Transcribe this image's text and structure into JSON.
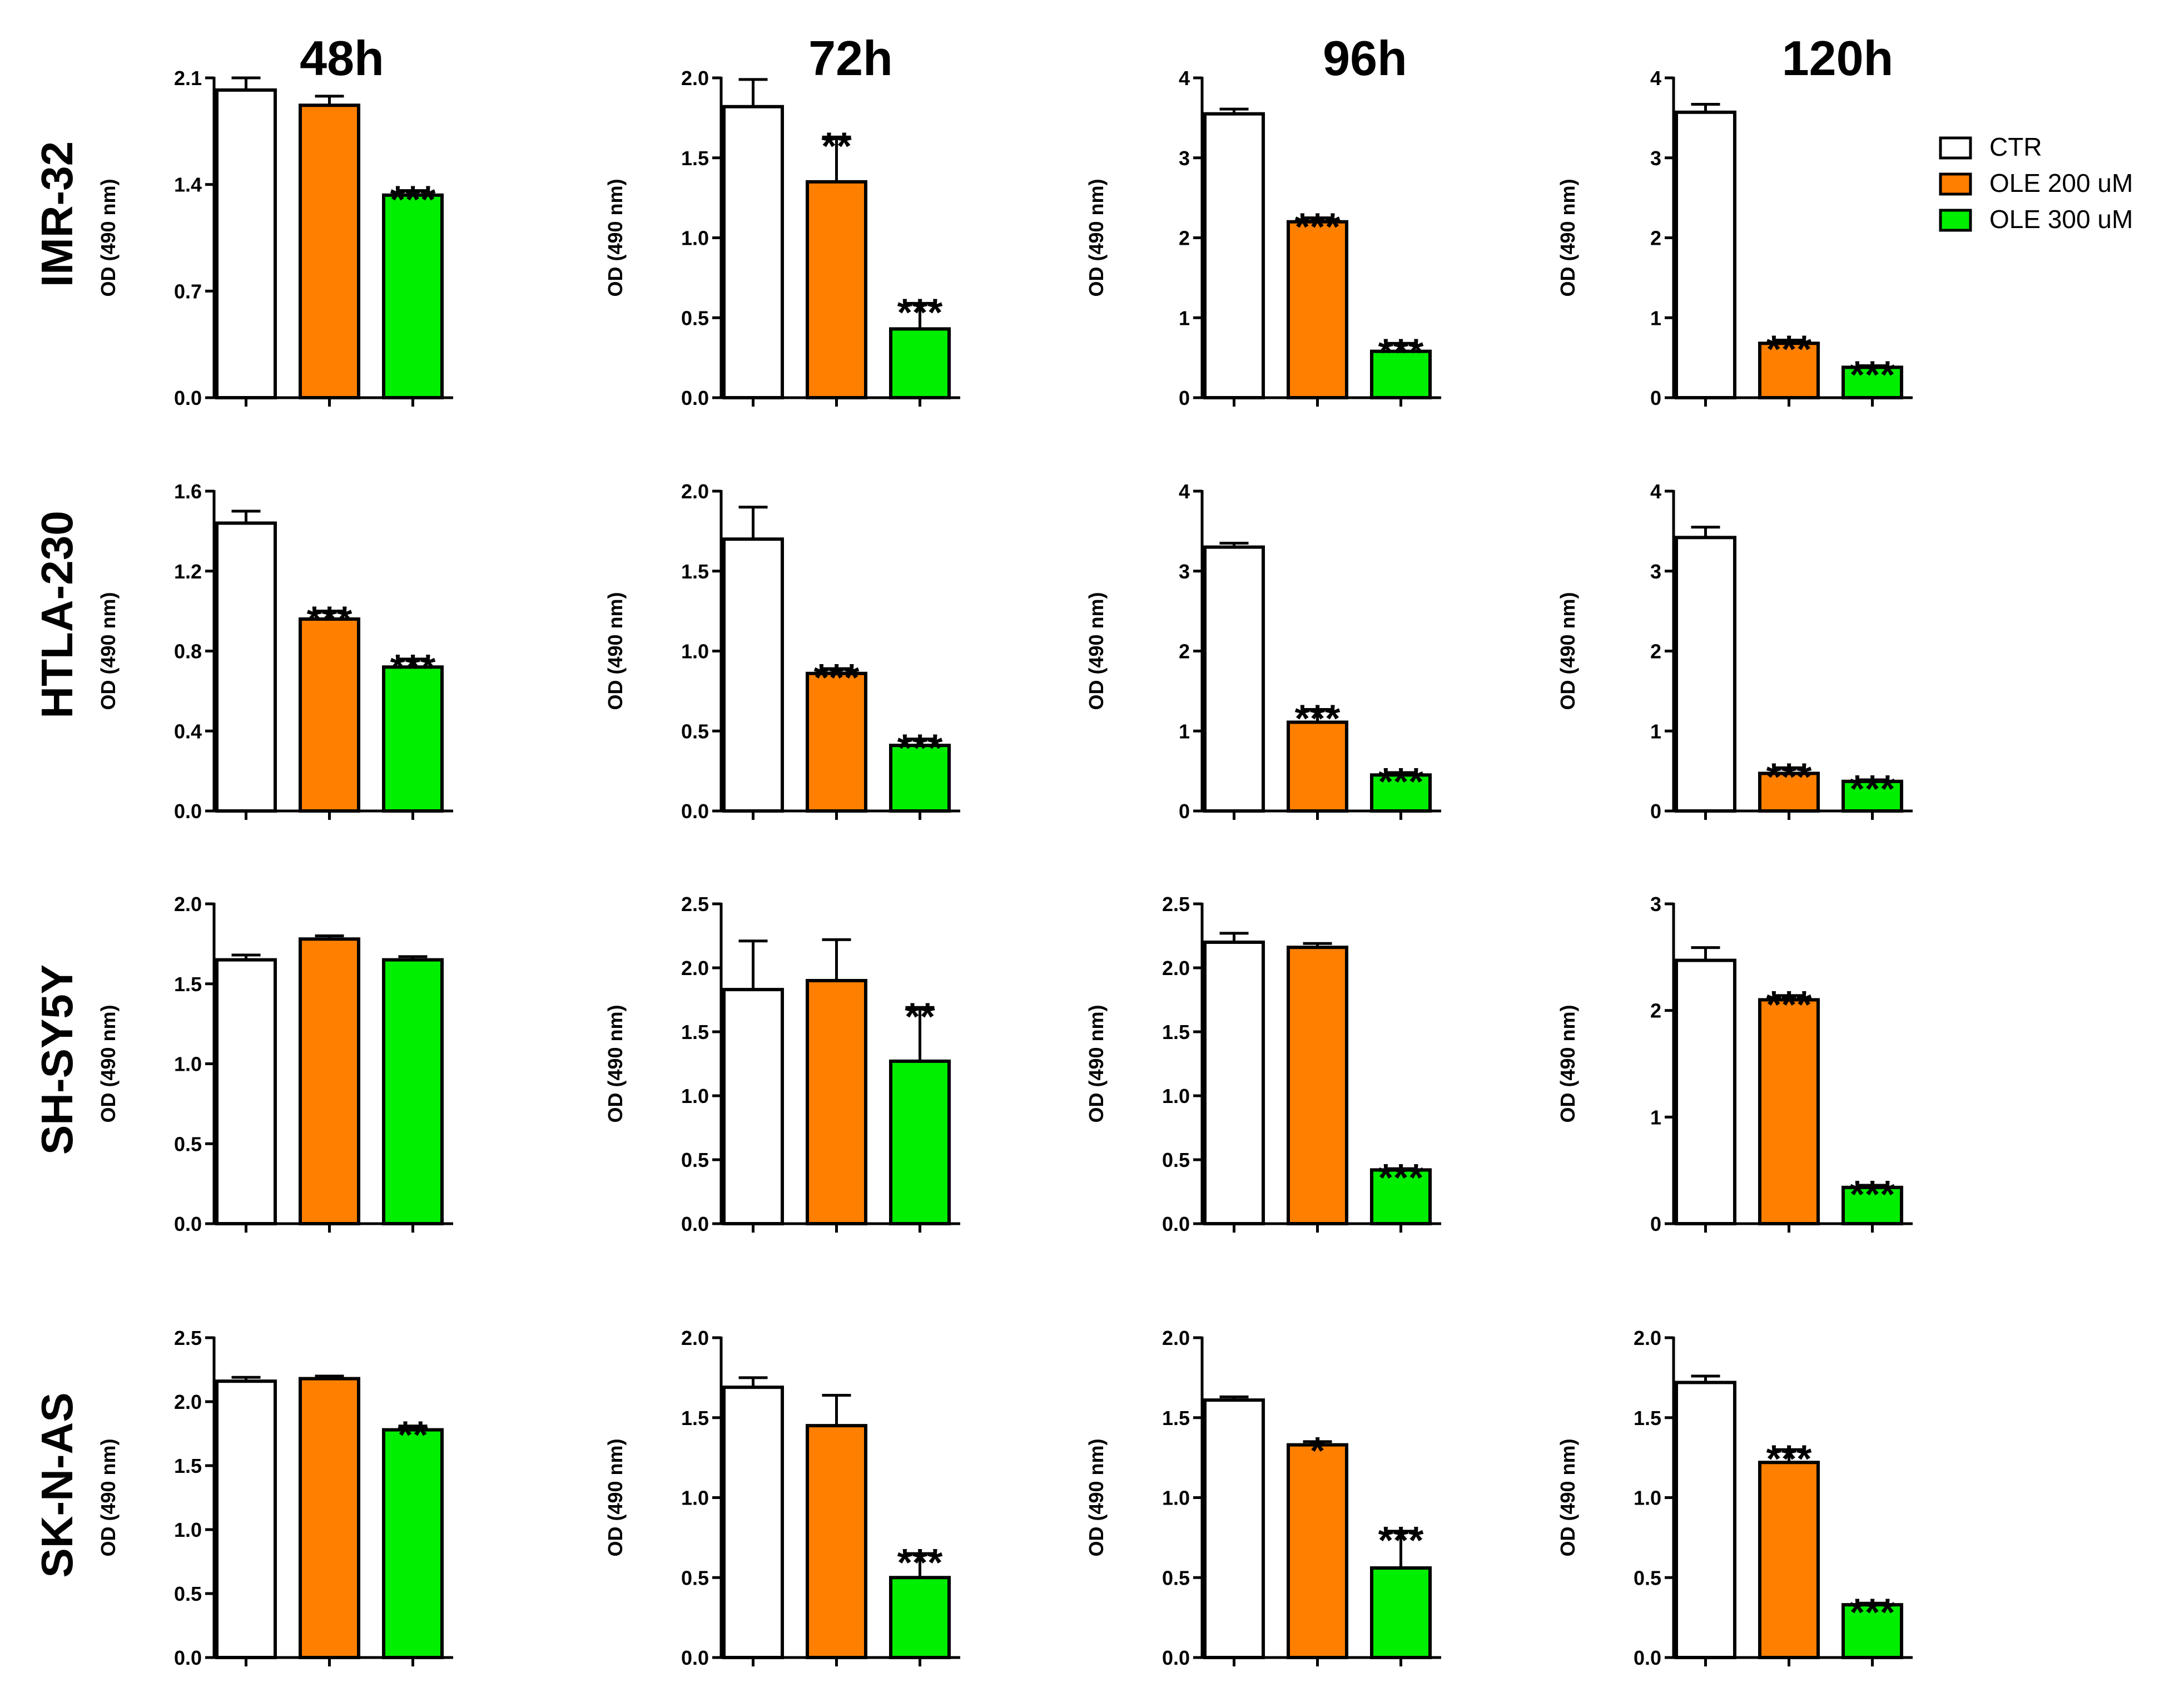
{
  "legend": [
    {
      "label": "CTR",
      "color": "#ffffff"
    },
    {
      "label": "OLE 200 uM",
      "color": "#ff7f00"
    },
    {
      "label": "OLE 300 uM",
      "color": "#00ee00"
    }
  ],
  "columns": [
    "48h",
    "72h",
    "96h",
    "120h"
  ],
  "rows": [
    "IMR-32",
    "HTLA-230",
    "SH-SY5Y",
    "SK-N-AS"
  ],
  "chart_data": [
    {
      "type": "bar",
      "row": "IMR-32",
      "column": "48h",
      "ylabel": "OD (490 nm)",
      "ylim": [
        0,
        2.1
      ],
      "yticks": [
        "0.0",
        "0.7",
        "1.4",
        "2.1"
      ],
      "categories": [
        "CTR",
        "OLE 200 uM",
        "OLE 300 uM"
      ],
      "values": [
        2.02,
        1.92,
        1.33
      ],
      "errors": [
        0.08,
        0.06,
        0.03
      ],
      "significance": [
        "",
        "",
        "***"
      ]
    },
    {
      "type": "bar",
      "row": "IMR-32",
      "column": "72h",
      "ylabel": "OD (490 nm)",
      "ylim": [
        0,
        2.0
      ],
      "yticks": [
        "0.0",
        "0.5",
        "1.0",
        "1.5",
        "2.0"
      ],
      "categories": [
        "CTR",
        "OLE 200 uM",
        "OLE 300 uM"
      ],
      "values": [
        1.82,
        1.35,
        0.43
      ],
      "errors": [
        0.17,
        0.28,
        0.16
      ],
      "significance": [
        "",
        "**",
        "***"
      ]
    },
    {
      "type": "bar",
      "row": "IMR-32",
      "column": "96h",
      "ylabel": "OD (490 nm)",
      "ylim": [
        0,
        4
      ],
      "yticks": [
        "0",
        "1",
        "2",
        "3",
        "4"
      ],
      "categories": [
        "CTR",
        "OLE 200 uM",
        "OLE 300 uM"
      ],
      "values": [
        3.55,
        2.2,
        0.58
      ],
      "errors": [
        0.06,
        0.05,
        0.1
      ],
      "significance": [
        "",
        "***",
        "***"
      ]
    },
    {
      "type": "bar",
      "row": "IMR-32",
      "column": "120h",
      "ylabel": "OD (490 nm)",
      "ylim": [
        0,
        4
      ],
      "yticks": [
        "0",
        "1",
        "2",
        "3",
        "4"
      ],
      "categories": [
        "CTR",
        "OLE 200 uM",
        "OLE 300 uM"
      ],
      "values": [
        3.57,
        0.68,
        0.38
      ],
      "errors": [
        0.1,
        0.04,
        0.02
      ],
      "significance": [
        "",
        "***",
        "***"
      ]
    },
    {
      "type": "bar",
      "row": "HTLA-230",
      "column": "48h",
      "ylabel": "OD (490 nm)",
      "ylim": [
        0,
        1.6
      ],
      "yticks": [
        "0.0",
        "0.4",
        "0.8",
        "1.2",
        "1.6"
      ],
      "categories": [
        "CTR",
        "OLE 200 uM",
        "OLE 300 uM"
      ],
      "values": [
        1.44,
        0.96,
        0.72
      ],
      "errors": [
        0.06,
        0.04,
        0.04
      ],
      "significance": [
        "",
        "***",
        "***"
      ]
    },
    {
      "type": "bar",
      "row": "HTLA-230",
      "column": "72h",
      "ylabel": "OD (490 nm)",
      "ylim": [
        0,
        2.0
      ],
      "yticks": [
        "0.0",
        "0.5",
        "1.0",
        "1.5",
        "2.0"
      ],
      "categories": [
        "CTR",
        "OLE 200 uM",
        "OLE 300 uM"
      ],
      "values": [
        1.7,
        0.86,
        0.41
      ],
      "errors": [
        0.2,
        0.03,
        0.04
      ],
      "significance": [
        "",
        "***",
        "***"
      ]
    },
    {
      "type": "bar",
      "row": "HTLA-230",
      "column": "96h",
      "ylabel": "OD (490 nm)",
      "ylim": [
        0,
        4
      ],
      "yticks": [
        "0",
        "1",
        "2",
        "3",
        "4"
      ],
      "categories": [
        "CTR",
        "OLE 200 uM",
        "OLE 300 uM"
      ],
      "values": [
        3.3,
        1.11,
        0.45
      ],
      "errors": [
        0.05,
        0.16,
        0.03
      ],
      "significance": [
        "",
        "***",
        "***"
      ]
    },
    {
      "type": "bar",
      "row": "HTLA-230",
      "column": "120h",
      "ylabel": "OD (490 nm)",
      "ylim": [
        0,
        4
      ],
      "yticks": [
        "0",
        "1",
        "2",
        "3",
        "4"
      ],
      "categories": [
        "CTR",
        "OLE 200 uM",
        "OLE 300 uM"
      ],
      "values": [
        3.42,
        0.47,
        0.37
      ],
      "errors": [
        0.13,
        0.07,
        0.02
      ],
      "significance": [
        "",
        "***",
        "***"
      ]
    },
    {
      "type": "bar",
      "row": "SH-SY5Y",
      "column": "48h",
      "ylabel": "OD (490 nm)",
      "ylim": [
        0,
        2.0
      ],
      "yticks": [
        "0.0",
        "0.5",
        "1.0",
        "1.5",
        "2.0"
      ],
      "categories": [
        "CTR",
        "OLE 200 uM",
        "OLE 300 uM"
      ],
      "values": [
        1.65,
        1.78,
        1.65
      ],
      "errors": [
        0.03,
        0.02,
        0.02
      ],
      "significance": [
        "",
        "",
        ""
      ]
    },
    {
      "type": "bar",
      "row": "SH-SY5Y",
      "column": "72h",
      "ylabel": "OD (490 nm)",
      "ylim": [
        0,
        2.5
      ],
      "yticks": [
        "0.0",
        "0.5",
        "1.0",
        "1.5",
        "2.0",
        "2.5"
      ],
      "categories": [
        "CTR",
        "OLE 200 uM",
        "OLE 300 uM"
      ],
      "values": [
        1.83,
        1.9,
        1.27
      ],
      "errors": [
        0.38,
        0.32,
        0.42
      ],
      "significance": [
        "",
        "",
        "**"
      ]
    },
    {
      "type": "bar",
      "row": "SH-SY5Y",
      "column": "96h",
      "ylabel": "OD (490 nm)",
      "ylim": [
        0,
        2.5
      ],
      "yticks": [
        "0.0",
        "0.5",
        "1.0",
        "1.5",
        "2.0",
        "2.5"
      ],
      "categories": [
        "CTR",
        "OLE 200 uM",
        "OLE 300 uM"
      ],
      "values": [
        2.2,
        2.16,
        0.42
      ],
      "errors": [
        0.07,
        0.03,
        0.01
      ],
      "significance": [
        "",
        "",
        "***"
      ]
    },
    {
      "type": "bar",
      "row": "SH-SY5Y",
      "column": "120h",
      "ylabel": "OD (490 nm)",
      "ylim": [
        0,
        3
      ],
      "yticks": [
        "0",
        "1",
        "2",
        "3"
      ],
      "categories": [
        "CTR",
        "OLE 200 uM",
        "OLE 300 uM"
      ],
      "values": [
        2.47,
        2.1,
        0.34
      ],
      "errors": [
        0.12,
        0.04,
        0.02
      ],
      "significance": [
        "",
        "***",
        "***"
      ]
    },
    {
      "type": "bar",
      "row": "SK-N-AS",
      "column": "48h",
      "ylabel": "OD (490 nm)",
      "ylim": [
        0,
        2.5
      ],
      "yticks": [
        "0.0",
        "0.5",
        "1.0",
        "1.5",
        "2.0",
        "2.5"
      ],
      "categories": [
        "CTR",
        "OLE 200 uM",
        "OLE 300 uM"
      ],
      "values": [
        2.16,
        2.18,
        1.78
      ],
      "errors": [
        0.03,
        0.02,
        0.03
      ],
      "significance": [
        "",
        "",
        "**"
      ]
    },
    {
      "type": "bar",
      "row": "SK-N-AS",
      "column": "72h",
      "ylabel": "OD (490 nm)",
      "ylim": [
        0,
        2.0
      ],
      "yticks": [
        "0.0",
        "0.5",
        "1.0",
        "1.5",
        "2.0"
      ],
      "categories": [
        "CTR",
        "OLE 200 uM",
        "OLE 300 uM"
      ],
      "values": [
        1.69,
        1.45,
        0.5
      ],
      "errors": [
        0.06,
        0.19,
        0.15
      ],
      "significance": [
        "",
        "",
        "***"
      ]
    },
    {
      "type": "bar",
      "row": "SK-N-AS",
      "column": "96h",
      "ylabel": "OD (490 nm)",
      "ylim": [
        0,
        2.0
      ],
      "yticks": [
        "0.0",
        "0.5",
        "1.0",
        "1.5",
        "2.0"
      ],
      "categories": [
        "CTR",
        "OLE 200 uM",
        "OLE 300 uM"
      ],
      "values": [
        1.61,
        1.33,
        0.56
      ],
      "errors": [
        0.02,
        0.02,
        0.23
      ],
      "significance": [
        "",
        "*",
        "***"
      ]
    },
    {
      "type": "bar",
      "row": "SK-N-AS",
      "column": "120h",
      "ylabel": "OD (490 nm)",
      "ylim": [
        0,
        2.0
      ],
      "yticks": [
        "0.0",
        "0.5",
        "1.0",
        "1.5",
        "2.0"
      ],
      "categories": [
        "CTR",
        "OLE 200 uM",
        "OLE 300 uM"
      ],
      "values": [
        1.72,
        1.22,
        0.33
      ],
      "errors": [
        0.04,
        0.08,
        0.01
      ],
      "significance": [
        "",
        "***",
        "***"
      ]
    }
  ]
}
